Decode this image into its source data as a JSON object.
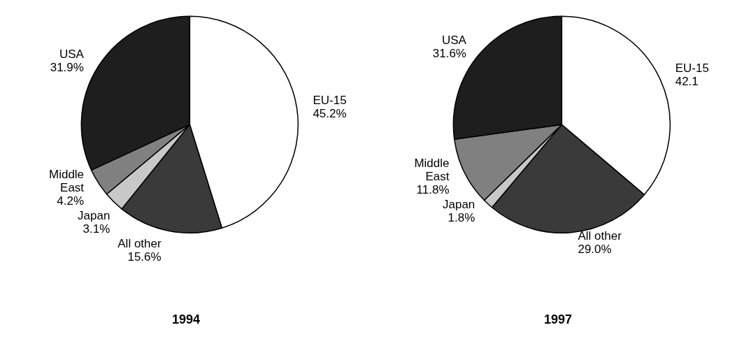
{
  "chart_data": [
    {
      "type": "pie",
      "title": "1994",
      "categories": [
        "EU-15",
        "All other",
        "Japan",
        "Middle\nEast",
        "USA"
      ],
      "values": [
        45.2,
        15.6,
        3.1,
        4.2,
        31.9
      ],
      "value_labels": [
        "45.2%",
        "15.6%",
        "3.1%",
        "4.2%",
        "31.9%"
      ],
      "colors": [
        "#ffffff",
        "#3a3a3a",
        "#c8c8c8",
        "#808080",
        "#1e1e1e"
      ]
    },
    {
      "type": "pie",
      "title": "1997",
      "categories": [
        "EU-15",
        "All other",
        "Japan",
        "Middle\nEast",
        "USA"
      ],
      "values": [
        42.1,
        29.0,
        1.8,
        11.8,
        31.6
      ],
      "value_labels": [
        "42.1",
        "29.0%",
        "1.8%",
        "11.8%",
        "31.6%"
      ],
      "colors": [
        "#ffffff",
        "#3a3a3a",
        "#c8c8c8",
        "#808080",
        "#1e1e1e"
      ]
    }
  ]
}
